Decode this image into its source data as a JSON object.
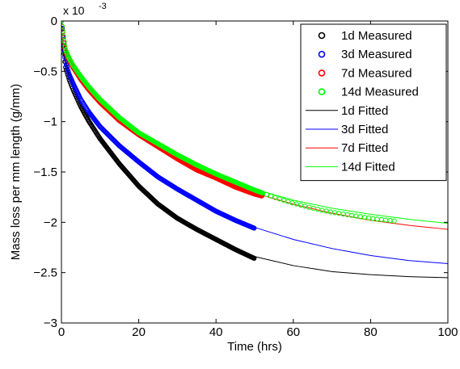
{
  "chart_data": {
    "type": "scatter",
    "title": "",
    "xlabel": "Time (hrs)",
    "ylabel": "Mass loss per mm length (g/mm)",
    "y_multiplier_label": "x 10",
    "y_multiplier_exponent": "-3",
    "xlim": [
      0,
      100
    ],
    "ylim": [
      -3,
      0
    ],
    "xticks": [
      0,
      20,
      40,
      60,
      80,
      100
    ],
    "yticks": [
      0,
      -0.5,
      -1,
      -1.5,
      -2,
      -2.5,
      -3
    ],
    "xtick_labels": [
      "0",
      "20",
      "40",
      "60",
      "80",
      "100"
    ],
    "ytick_labels": [
      "0",
      "−0.5",
      "−1",
      "−1.5",
      "−2",
      "−2.5",
      "−3"
    ],
    "grid": false,
    "legend_position": "top-right",
    "units_note": "y values in units of 10^-3 g/mm",
    "series": [
      {
        "name": "1d Measured",
        "kind": "measured",
        "color": "#000000",
        "x": [
          0,
          1,
          2,
          3,
          5,
          7,
          10,
          15,
          20,
          25,
          30,
          35,
          40,
          45,
          50
        ],
        "y": [
          0,
          -0.45,
          -0.58,
          -0.68,
          -0.85,
          -0.99,
          -1.17,
          -1.42,
          -1.64,
          -1.82,
          -1.96,
          -2.07,
          -2.17,
          -2.27,
          -2.36
        ]
      },
      {
        "name": "3d Measured",
        "kind": "measured",
        "color": "#0000ff",
        "x": [
          0,
          1,
          2,
          3,
          5,
          7,
          10,
          15,
          20,
          25,
          30,
          35,
          40,
          45,
          50
        ],
        "y": [
          0,
          -0.4,
          -0.53,
          -0.62,
          -0.78,
          -0.9,
          -1.05,
          -1.24,
          -1.4,
          -1.55,
          -1.67,
          -1.78,
          -1.89,
          -1.98,
          -2.06
        ]
      },
      {
        "name": "7d Measured",
        "kind": "measured",
        "color": "#ff0000",
        "x": [
          0,
          1,
          2,
          3,
          5,
          7,
          10,
          15,
          20,
          25,
          30,
          35,
          40,
          45,
          50,
          52
        ],
        "y": [
          0,
          -0.3,
          -0.39,
          -0.46,
          -0.58,
          -0.68,
          -0.81,
          -0.99,
          -1.13,
          -1.25,
          -1.37,
          -1.48,
          -1.56,
          -1.65,
          -1.72,
          -1.74
        ]
      },
      {
        "name": "14d Measured",
        "kind": "measured",
        "color": "#00ff00",
        "x": [
          0,
          1,
          2,
          3,
          5,
          7,
          10,
          15,
          20,
          25,
          30,
          35,
          40,
          45,
          50,
          55,
          60,
          65,
          70,
          75,
          80,
          87
        ],
        "y": [
          0,
          -0.28,
          -0.37,
          -0.44,
          -0.55,
          -0.65,
          -0.78,
          -0.96,
          -1.11,
          -1.22,
          -1.33,
          -1.43,
          -1.52,
          -1.6,
          -1.68,
          -1.75,
          -1.81,
          -1.86,
          -1.9,
          -1.93,
          -1.96,
          -1.99
        ]
      },
      {
        "name": "1d Fitted",
        "kind": "fitted",
        "color": "#000000",
        "x": [
          0,
          1,
          2,
          3,
          5,
          7,
          10,
          15,
          20,
          25,
          30,
          35,
          40,
          45,
          50,
          60,
          70,
          80,
          90,
          100
        ],
        "y": [
          -0.22,
          -0.42,
          -0.55,
          -0.66,
          -0.84,
          -0.98,
          -1.17,
          -1.43,
          -1.64,
          -1.82,
          -1.96,
          -2.08,
          -2.18,
          -2.27,
          -2.34,
          -2.43,
          -2.49,
          -2.52,
          -2.54,
          -2.55
        ]
      },
      {
        "name": "3d Fitted",
        "kind": "fitted",
        "color": "#0000ff",
        "x": [
          0,
          1,
          2,
          3,
          5,
          7,
          10,
          15,
          20,
          25,
          30,
          35,
          40,
          45,
          50,
          60,
          70,
          80,
          90,
          100
        ],
        "y": [
          -0.2,
          -0.38,
          -0.5,
          -0.6,
          -0.75,
          -0.87,
          -1.02,
          -1.23,
          -1.41,
          -1.56,
          -1.69,
          -1.8,
          -1.9,
          -1.98,
          -2.05,
          -2.17,
          -2.26,
          -2.33,
          -2.38,
          -2.41
        ]
      },
      {
        "name": "7d Fitted",
        "kind": "fitted",
        "color": "#ff0000",
        "x": [
          0,
          1,
          2,
          3,
          5,
          7,
          10,
          15,
          20,
          25,
          30,
          35,
          40,
          45,
          50,
          60,
          70,
          80,
          90,
          100
        ],
        "y": [
          -0.15,
          -0.29,
          -0.38,
          -0.46,
          -0.58,
          -0.68,
          -0.81,
          -0.99,
          -1.14,
          -1.27,
          -1.38,
          -1.48,
          -1.57,
          -1.64,
          -1.71,
          -1.82,
          -1.91,
          -1.98,
          -2.03,
          -2.07
        ]
      },
      {
        "name": "14d Fitted",
        "kind": "fitted",
        "color": "#00ff00",
        "x": [
          0,
          1,
          2,
          3,
          5,
          7,
          10,
          15,
          20,
          25,
          30,
          35,
          40,
          45,
          50,
          60,
          70,
          80,
          90,
          100
        ],
        "y": [
          -0.14,
          -0.27,
          -0.36,
          -0.43,
          -0.55,
          -0.65,
          -0.78,
          -0.96,
          -1.11,
          -1.23,
          -1.34,
          -1.44,
          -1.53,
          -1.61,
          -1.67,
          -1.78,
          -1.86,
          -1.92,
          -1.97,
          -2.01
        ]
      }
    ]
  }
}
